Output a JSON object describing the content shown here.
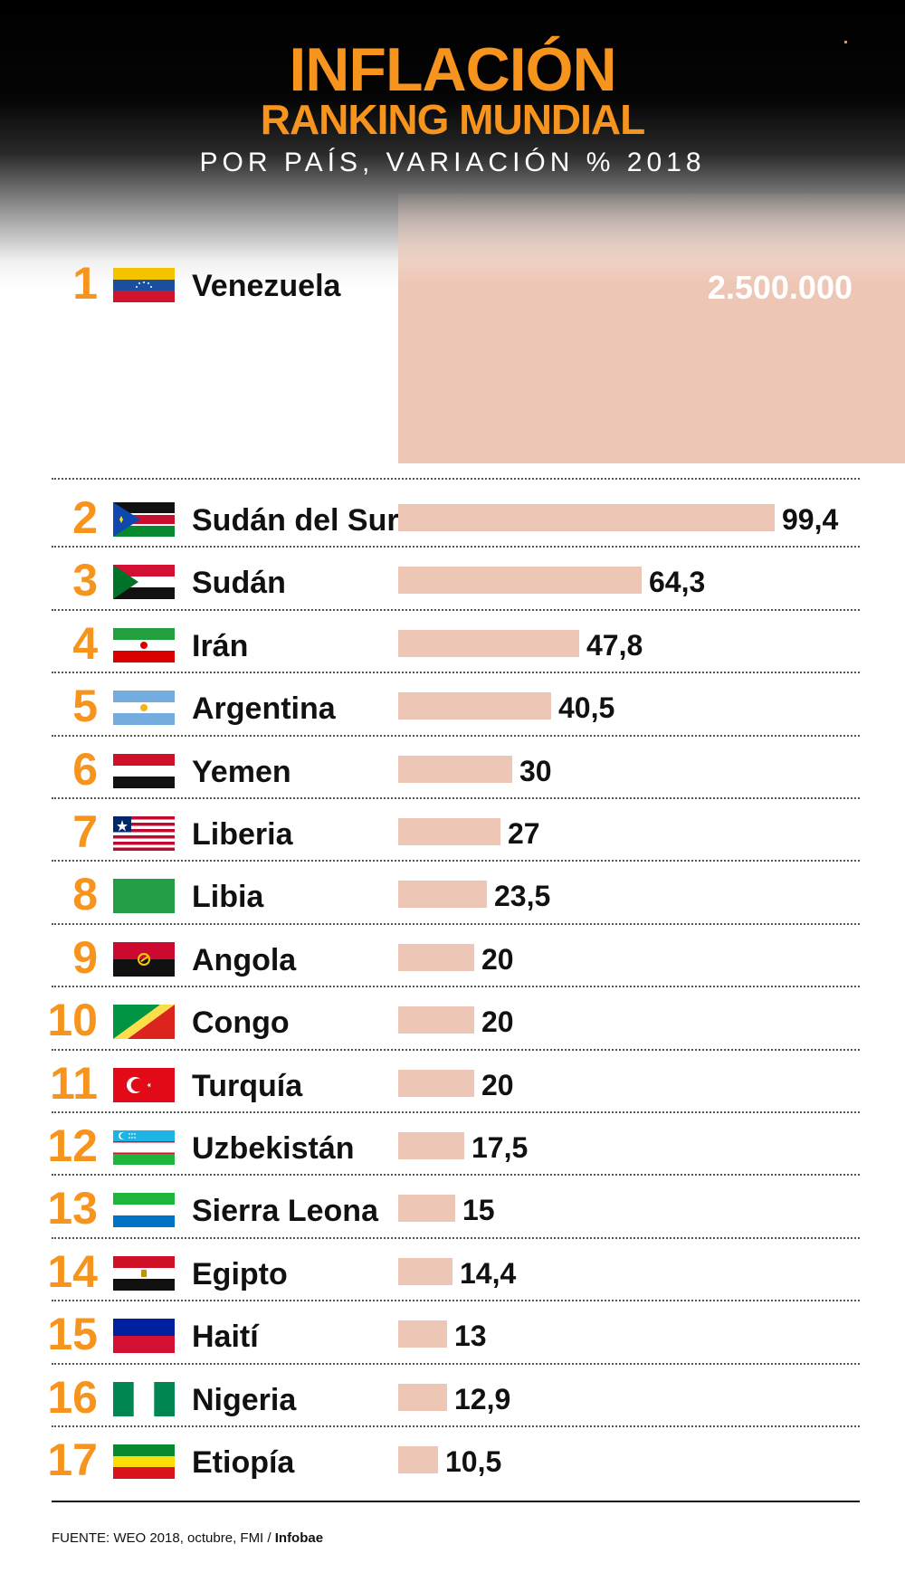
{
  "header": {
    "title": "INFLACIÓN",
    "subtitle": "RANKING MUNDIAL",
    "description": "POR PAÍS, VARIACIÓN % 2018"
  },
  "chart_data": {
    "type": "bar",
    "title": "INFLACIÓN",
    "subtitle": "RANKING MUNDIAL",
    "ylabel": "POR PAÍS, VARIACIÓN % 2018",
    "orientation": "horizontal",
    "rows": [
      {
        "rank": "1",
        "country": "Venezuela",
        "value": 2500000,
        "label": "2.500.000",
        "flag": "flag-venezuela-icon"
      },
      {
        "rank": "2",
        "country": "Sudán del Sur",
        "value": 99.4,
        "label": "99,4",
        "flag": "flag-south-sudan-icon"
      },
      {
        "rank": "3",
        "country": "Sudán",
        "value": 64.3,
        "label": "64,3",
        "flag": "flag-sudan-icon"
      },
      {
        "rank": "4",
        "country": "Irán",
        "value": 47.8,
        "label": "47,8",
        "flag": "flag-iran-icon"
      },
      {
        "rank": "5",
        "country": "Argentina",
        "value": 40.5,
        "label": "40,5",
        "flag": "flag-argentina-icon"
      },
      {
        "rank": "6",
        "country": "Yemen",
        "value": 30,
        "label": "30",
        "flag": "flag-yemen-icon"
      },
      {
        "rank": "7",
        "country": "Liberia",
        "value": 27,
        "label": "27",
        "flag": "flag-liberia-icon"
      },
      {
        "rank": "8",
        "country": "Libia",
        "value": 23.5,
        "label": "23,5",
        "flag": "flag-libya-icon"
      },
      {
        "rank": "9",
        "country": "Angola",
        "value": 20,
        "label": "20",
        "flag": "flag-angola-icon"
      },
      {
        "rank": "10",
        "country": "Congo",
        "value": 20,
        "label": "20",
        "flag": "flag-congo-icon"
      },
      {
        "rank": "11",
        "country": "Turquía",
        "value": 20,
        "label": "20",
        "flag": "flag-turkey-icon"
      },
      {
        "rank": "12",
        "country": "Uzbekistán",
        "value": 17.5,
        "label": "17,5",
        "flag": "flag-uzbekistan-icon"
      },
      {
        "rank": "13",
        "country": "Sierra Leona",
        "value": 15,
        "label": "15",
        "flag": "flag-sierra-leone-icon"
      },
      {
        "rank": "14",
        "country": "Egipto",
        "value": 14.4,
        "label": "14,4",
        "flag": "flag-egypt-icon"
      },
      {
        "rank": "15",
        "country": "Haití",
        "value": 13,
        "label": "13",
        "flag": "flag-haiti-icon"
      },
      {
        "rank": "16",
        "country": "Nigeria",
        "value": 12.9,
        "label": "12,9",
        "flag": "flag-nigeria-icon"
      },
      {
        "rank": "17",
        "country": "Etiopía",
        "value": 10.5,
        "label": "10,5",
        "flag": "flag-ethiopia-icon"
      }
    ],
    "colors": {
      "bar": "#edc6b5",
      "rank": "#f7941d",
      "title": "#f7941d"
    }
  },
  "footer": {
    "source": "FUENTE: WEO 2018, octubre, FMI / ",
    "brand": "Infobae"
  }
}
